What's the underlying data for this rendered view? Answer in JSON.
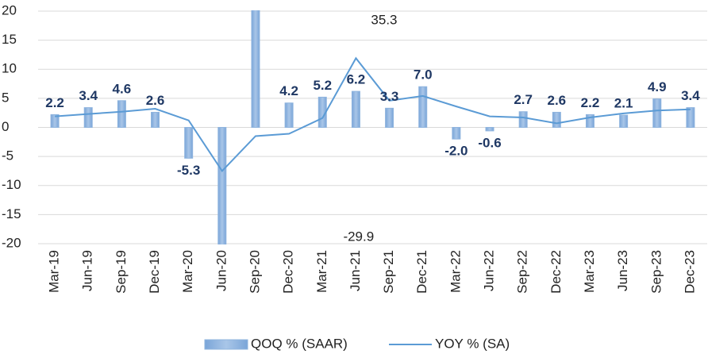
{
  "chart_data": {
    "type": "bar_line",
    "categories": [
      "Mar-19",
      "Jun-19",
      "Sep-19",
      "Dec-19",
      "Mar-20",
      "Jun-20",
      "Sep-20",
      "Dec-20",
      "Mar-21",
      "Jun-21",
      "Sep-21",
      "Dec-21",
      "Mar-22",
      "Jun-22",
      "Sep-22",
      "Dec-22",
      "Mar-23",
      "Jun-23",
      "Sep-23",
      "Dec-23"
    ],
    "series": [
      {
        "name": "QOQ % (SAAR)",
        "type": "bar",
        "color": "#8fb4de",
        "values": [
          2.2,
          3.4,
          4.6,
          2.6,
          -5.3,
          -29.9,
          35.3,
          4.2,
          5.2,
          6.2,
          3.3,
          7.0,
          -2.0,
          -0.6,
          2.7,
          2.6,
          2.2,
          2.1,
          4.9,
          3.4
        ],
        "value_labels": [
          "2.2",
          "3.4",
          "4.6",
          "2.6",
          "-5.3",
          "-29.9",
          "35.3",
          "4.2",
          "5.2",
          "6.2",
          "3.3",
          "7.0",
          "-2.0",
          "-0.6",
          "2.7",
          "2.6",
          "2.2",
          "2.1",
          "4.9",
          "3.4"
        ]
      },
      {
        "name": "YOY % (SA)",
        "type": "line",
        "color": "#5b9bd5",
        "values": [
          1.9,
          2.3,
          2.7,
          3.2,
          1.2,
          -7.5,
          -1.5,
          -1.1,
          1.6,
          11.9,
          4.6,
          5.4,
          3.6,
          1.9,
          1.7,
          0.7,
          1.7,
          2.4,
          2.9,
          3.1
        ]
      }
    ],
    "ylim": [
      -20,
      20
    ],
    "yticks": [
      -20,
      -15,
      -10,
      -5,
      0,
      5,
      10,
      15,
      20
    ],
    "grid": true,
    "legend": "bottom"
  }
}
